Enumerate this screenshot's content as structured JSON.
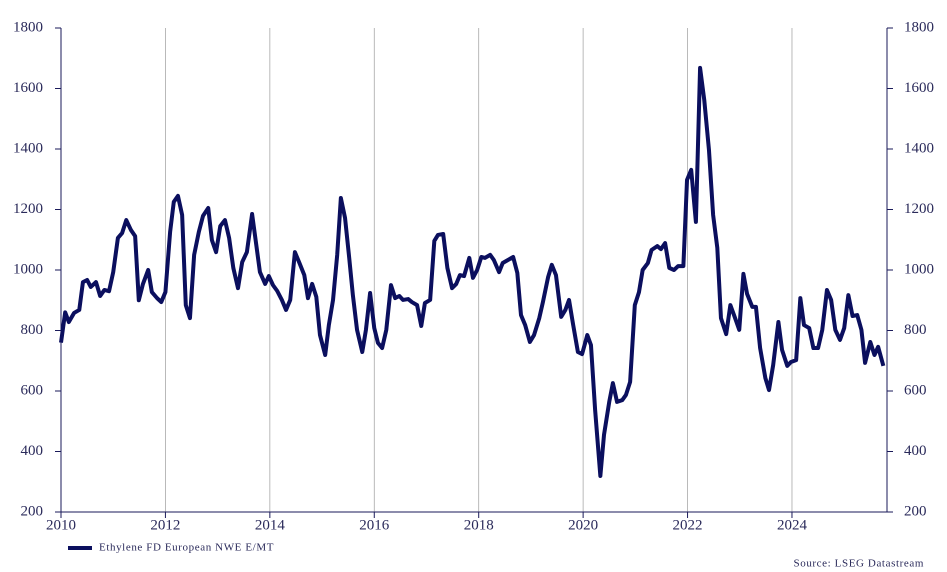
{
  "chart_data": {
    "type": "line",
    "x": [
      2010.0,
      2010.08,
      2010.15,
      2010.25,
      2010.35,
      2010.42,
      2010.5,
      2010.57,
      2010.67,
      2010.75,
      2010.83,
      2010.92,
      2011.0,
      2011.09,
      2011.17,
      2011.25,
      2011.34,
      2011.42,
      2011.49,
      2011.57,
      2011.67,
      2011.74,
      2011.84,
      2011.92,
      2012.0,
      2012.09,
      2012.16,
      2012.24,
      2012.32,
      2012.39,
      2012.47,
      2012.55,
      2012.64,
      2012.72,
      2012.82,
      2012.89,
      2012.97,
      2013.05,
      2013.14,
      2013.22,
      2013.3,
      2013.39,
      2013.47,
      2013.56,
      2013.66,
      2013.74,
      2013.81,
      2013.91,
      2013.98,
      2014.06,
      2014.14,
      2014.23,
      2014.31,
      2014.39,
      2014.48,
      2014.56,
      2014.66,
      2014.73,
      2014.81,
      2014.89,
      2014.96,
      2015.06,
      2015.13,
      2015.21,
      2015.29,
      2015.36,
      2015.44,
      2015.52,
      2015.59,
      2015.67,
      2015.77,
      2015.84,
      2015.92,
      2016.0,
      2016.07,
      2016.15,
      2016.23,
      2016.32,
      2016.4,
      2016.48,
      2016.55,
      2016.65,
      2016.72,
      2016.82,
      2016.9,
      2016.97,
      2017.07,
      2017.15,
      2017.22,
      2017.32,
      2017.4,
      2017.49,
      2017.57,
      2017.64,
      2017.72,
      2017.82,
      2017.89,
      2017.97,
      2018.05,
      2018.12,
      2018.22,
      2018.29,
      2018.39,
      2018.46,
      2018.56,
      2018.66,
      2018.74,
      2018.81,
      2018.89,
      2018.98,
      2019.06,
      2019.16,
      2019.23,
      2019.33,
      2019.4,
      2019.48,
      2019.58,
      2019.66,
      2019.73,
      2019.81,
      2019.9,
      2019.98,
      2020.08,
      2020.15,
      2020.23,
      2020.33,
      2020.4,
      2020.5,
      2020.57,
      2020.65,
      2020.75,
      2020.82,
      2020.9,
      2020.99,
      2021.07,
      2021.14,
      2021.24,
      2021.31,
      2021.42,
      2021.49,
      2021.57,
      2021.65,
      2021.74,
      2021.82,
      2021.92,
      2021.99,
      2022.07,
      2022.16,
      2022.24,
      2022.32,
      2022.41,
      2022.49,
      2022.57,
      2022.64,
      2022.74,
      2022.82,
      2022.89,
      2022.99,
      2023.07,
      2023.14,
      2023.24,
      2023.31,
      2023.39,
      2023.49,
      2023.56,
      2023.64,
      2023.74,
      2023.81,
      2023.91,
      2023.98,
      2024.08,
      2024.16,
      2024.23,
      2024.33,
      2024.41,
      2024.5,
      2024.58,
      2024.67,
      2024.75,
      2024.83,
      2024.92,
      2025.0,
      2025.08,
      2025.16,
      2025.25,
      2025.33,
      2025.4,
      2025.5,
      2025.58,
      2025.65,
      2025.75
    ],
    "series": [
      {
        "name": "Ethylene FD European NWE E/MT",
        "color": "#0b0f5e",
        "values": [
          760,
          860,
          828,
          858,
          868,
          960,
          967,
          944,
          960,
          914,
          934,
          930,
          993,
          1106,
          1122,
          1165,
          1132,
          1112,
          900,
          954,
          1000,
          927,
          907,
          894,
          927,
          1126,
          1225,
          1245,
          1182,
          884,
          841,
          1050,
          1126,
          1179,
          1205,
          1099,
          1059,
          1145,
          1165,
          1106,
          1007,
          940,
          1026,
          1059,
          1185,
          1083,
          993,
          954,
          980,
          950,
          931,
          901,
          868,
          901,
          1059,
          1026,
          983,
          907,
          954,
          911,
          785,
          719,
          818,
          901,
          1050,
          1238,
          1172,
          1040,
          917,
          802,
          729,
          802,
          924,
          808,
          759,
          742,
          802,
          950,
          907,
          914,
          901,
          904,
          894,
          884,
          815,
          891,
          901,
          1096,
          1116,
          1119,
          1007,
          940,
          954,
          983,
          980,
          1040,
          974,
          1000,
          1043,
          1040,
          1050,
          1033,
          993,
          1023,
          1033,
          1043,
          990,
          851,
          818,
          762,
          785,
          841,
          894,
          977,
          1017,
          983,
          845,
          868,
          901,
          818,
          729,
          722,
          785,
          752,
          537,
          319,
          455,
          564,
          626,
          564,
          570,
          587,
          630,
          884,
          927,
          1000,
          1023,
          1066,
          1079,
          1069,
          1089,
          1007,
          1000,
          1013,
          1013,
          1298,
          1331,
          1159,
          1668,
          1562,
          1397,
          1182,
          1073,
          841,
          788,
          884,
          851,
          802,
          987,
          921,
          878,
          878,
          742,
          643,
          603,
          686,
          828,
          736,
          683,
          696,
          702,
          907,
          818,
          808,
          742,
          742,
          802,
          934,
          901,
          802,
          769,
          808,
          917,
          848,
          851,
          802,
          693,
          762,
          719,
          746,
          683
        ]
      }
    ],
    "xlim": [
      2010,
      2025.82
    ],
    "xticks": [
      2010,
      2012,
      2014,
      2016,
      2018,
      2020,
      2022,
      2024
    ],
    "ylim": [
      200,
      1800
    ],
    "yticks": [
      200,
      400,
      600,
      800,
      1000,
      1200,
      1400,
      1600,
      1800
    ],
    "y2lim": [
      200,
      1800
    ],
    "y2ticks": [
      200,
      400,
      600,
      800,
      1000,
      1200,
      1400,
      1600,
      1800
    ],
    "grid": true,
    "legend": "bottom-left",
    "source": "Source: LSEG Datastream"
  }
}
